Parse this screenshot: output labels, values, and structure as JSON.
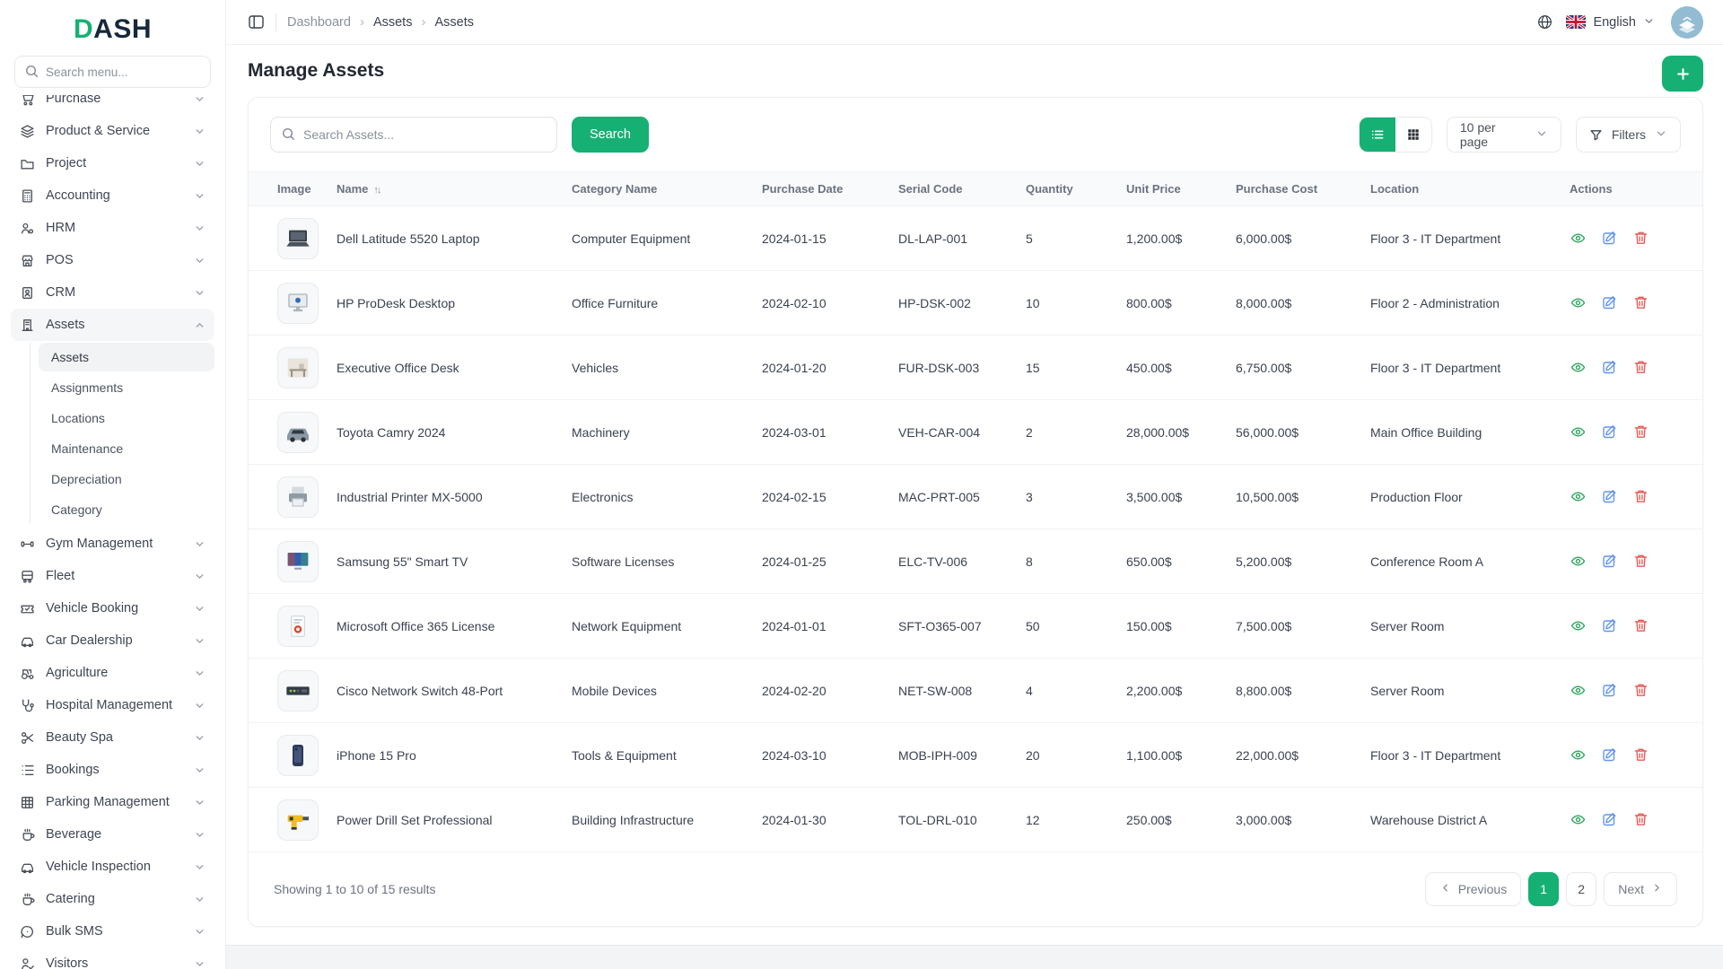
{
  "brand": {
    "logo_first": "D",
    "logo_rest": "ASH"
  },
  "colors": {
    "primary": "#17B074",
    "action_view": "#2ea55f",
    "action_edit": "#6496e8",
    "action_delete": "#e85c57"
  },
  "sidebar": {
    "search_placeholder": "Search menu...",
    "items": [
      {
        "label": "Purchase",
        "icon": "cart"
      },
      {
        "label": "Product & Service",
        "icon": "layers"
      },
      {
        "label": "Project",
        "icon": "folder"
      },
      {
        "label": "Accounting",
        "icon": "calculator"
      },
      {
        "label": "HRM",
        "icon": "people"
      },
      {
        "label": "POS",
        "icon": "store"
      },
      {
        "label": "CRM",
        "icon": "idcard"
      },
      {
        "label": "Assets",
        "icon": "building",
        "expanded": true,
        "active": true,
        "children": [
          "Assets",
          "Assignments",
          "Locations",
          "Maintenance",
          "Depreciation",
          "Category"
        ],
        "active_child": "Assets"
      },
      {
        "label": "Gym Management",
        "icon": "dumbbell"
      },
      {
        "label": "Fleet",
        "icon": "bus"
      },
      {
        "label": "Vehicle Booking",
        "icon": "ticket"
      },
      {
        "label": "Car Dealership",
        "icon": "car"
      },
      {
        "label": "Agriculture",
        "icon": "tractor"
      },
      {
        "label": "Hospital Management",
        "icon": "stethoscope"
      },
      {
        "label": "Beauty Spa",
        "icon": "scissors"
      },
      {
        "label": "Bookings",
        "icon": "listdots"
      },
      {
        "label": "Parking Management",
        "icon": "grid"
      },
      {
        "label": "Beverage",
        "icon": "cup"
      },
      {
        "label": "Vehicle Inspection",
        "icon": "car"
      },
      {
        "label": "Catering",
        "icon": "cup"
      },
      {
        "label": "Bulk SMS",
        "icon": "chat"
      },
      {
        "label": "Visitors",
        "icon": "personcheck"
      }
    ]
  },
  "topbar": {
    "breadcrumb": [
      "Dashboard",
      "Assets",
      "Assets"
    ],
    "language": "English"
  },
  "page": {
    "title": "Manage Assets"
  },
  "toolbar": {
    "search_placeholder": "Search Assets...",
    "search_button": "Search",
    "per_page": "10 per page",
    "filters_label": "Filters"
  },
  "table": {
    "columns": [
      "Image",
      "Name",
      "Category Name",
      "Purchase Date",
      "Serial Code",
      "Quantity",
      "Unit Price",
      "Purchase Cost",
      "Location",
      "Actions"
    ],
    "sort_column": "Name",
    "rows": [
      {
        "thumb": "laptop",
        "name": "Dell Latitude 5520 Laptop",
        "category": "Computer Equipment",
        "date": "2024-01-15",
        "serial": "DL-LAP-001",
        "qty": "5",
        "unit_price": "1,200.00$",
        "cost": "6,000.00$",
        "location": "Floor 3 - IT Department"
      },
      {
        "thumb": "monitor",
        "name": "HP ProDesk Desktop",
        "category": "Office Furniture",
        "date": "2024-02-10",
        "serial": "HP-DSK-002",
        "qty": "10",
        "unit_price": "800.00$",
        "cost": "8,000.00$",
        "location": "Floor 2 - Administration"
      },
      {
        "thumb": "desk",
        "name": "Executive Office Desk",
        "category": "Vehicles",
        "date": "2024-01-20",
        "serial": "FUR-DSK-003",
        "qty": "15",
        "unit_price": "450.00$",
        "cost": "6,750.00$",
        "location": "Floor 3 - IT Department"
      },
      {
        "thumb": "car",
        "name": "Toyota Camry 2024",
        "category": "Machinery",
        "date": "2024-03-01",
        "serial": "VEH-CAR-004",
        "qty": "2",
        "unit_price": "28,000.00$",
        "cost": "56,000.00$",
        "location": "Main Office Building"
      },
      {
        "thumb": "printer",
        "name": "Industrial Printer MX-5000",
        "category": "Electronics",
        "date": "2024-02-15",
        "serial": "MAC-PRT-005",
        "qty": "3",
        "unit_price": "3,500.00$",
        "cost": "10,500.00$",
        "location": "Production Floor"
      },
      {
        "thumb": "tv",
        "name": "Samsung 55\" Smart TV",
        "category": "Software Licenses",
        "date": "2024-01-25",
        "serial": "ELC-TV-006",
        "qty": "8",
        "unit_price": "650.00$",
        "cost": "5,200.00$",
        "location": "Conference Room A"
      },
      {
        "thumb": "doc",
        "name": "Microsoft Office 365 License",
        "category": "Network Equipment",
        "date": "2024-01-01",
        "serial": "SFT-O365-007",
        "qty": "50",
        "unit_price": "150.00$",
        "cost": "7,500.00$",
        "location": "Server Room"
      },
      {
        "thumb": "switch",
        "name": "Cisco Network Switch 48-Port",
        "category": "Mobile Devices",
        "date": "2024-02-20",
        "serial": "NET-SW-008",
        "qty": "4",
        "unit_price": "2,200.00$",
        "cost": "8,800.00$",
        "location": "Server Room"
      },
      {
        "thumb": "phone",
        "name": "iPhone 15 Pro",
        "category": "Tools & Equipment",
        "date": "2024-03-10",
        "serial": "MOB-IPH-009",
        "qty": "20",
        "unit_price": "1,100.00$",
        "cost": "22,000.00$",
        "location": "Floor 3 - IT Department"
      },
      {
        "thumb": "drill",
        "name": "Power Drill Set Professional",
        "category": "Building Infrastructure",
        "date": "2024-01-30",
        "serial": "TOL-DRL-010",
        "qty": "12",
        "unit_price": "250.00$",
        "cost": "3,000.00$",
        "location": "Warehouse District A"
      }
    ]
  },
  "footer": {
    "summary": "Showing 1 to 10 of 15 results",
    "previous_label": "Previous",
    "pages": [
      "1",
      "2"
    ],
    "active_page": "1",
    "next_label": "Next"
  }
}
